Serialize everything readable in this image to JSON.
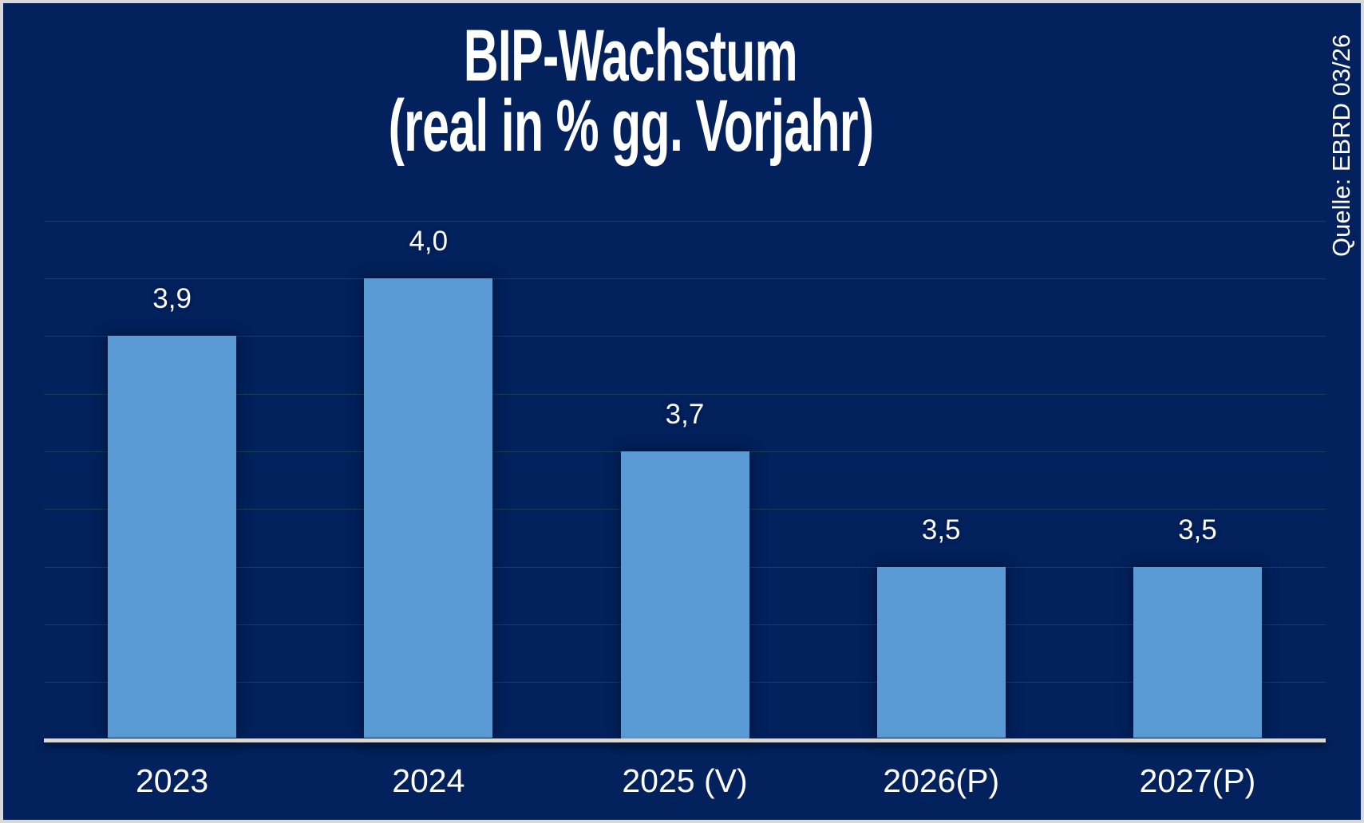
{
  "title": {
    "line1": "BIP-Wachstum",
    "line2": "(real in % gg. Vorjahr)"
  },
  "source": "Quelle: EBRD 03/26",
  "chart_data": {
    "type": "bar",
    "title": "BIP-Wachstum (real in % gg. Vorjahr)",
    "categories": [
      "2023",
      "2024",
      "2025 (V)",
      "2026(P)",
      "2027(P)"
    ],
    "values": [
      3.9,
      4.0,
      3.7,
      3.5,
      3.5
    ],
    "value_labels": [
      "3,9",
      "4,0",
      "3,7",
      "3,5",
      "3,5"
    ],
    "xlabel": "",
    "ylabel": "",
    "ylim": [
      3.2,
      4.1
    ],
    "gridline_step": 0.1,
    "grid": "horizontal-only",
    "legend": "none",
    "y_axis_tick_labels_visible": false,
    "bar_color": "#5b9bd5",
    "background_color": "#02215d",
    "axis_color": "#d9d9d9",
    "text_color": "#ffffff"
  }
}
